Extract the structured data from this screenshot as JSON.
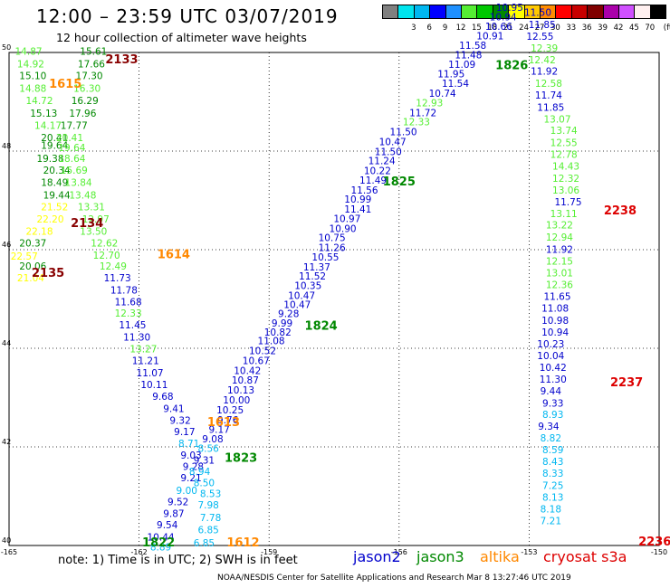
{
  "title": "12:00 – 23:59 UTC 03/07/2019",
  "subtitle": "12 hour collection of altimeter wave heights",
  "legend": {
    "unit_label": "(ft)",
    "bins": [
      {
        "color": "#808080",
        "label": ""
      },
      {
        "color": "#00e5ee",
        "label": "3"
      },
      {
        "color": "#00b7f0",
        "label": "6"
      },
      {
        "color": "#0000ff",
        "label": "9"
      },
      {
        "color": "#1e90ff",
        "label": "12"
      },
      {
        "color": "#55ee33",
        "label": "15"
      },
      {
        "color": "#00c800",
        "label": "18"
      },
      {
        "color": "#008800",
        "label": "21"
      },
      {
        "color": "#ffff00",
        "label": "24"
      },
      {
        "color": "#ffc800",
        "label": "27"
      },
      {
        "color": "#ff8c00",
        "label": "30"
      },
      {
        "color": "#ff0000",
        "label": "33"
      },
      {
        "color": "#c80000",
        "label": "36"
      },
      {
        "color": "#800000",
        "label": "39"
      },
      {
        "color": "#aa00aa",
        "label": "42"
      },
      {
        "color": "#d050ff",
        "label": "45"
      },
      {
        "color": "#fff0f0",
        "label": "70"
      },
      {
        "color": "#000000",
        "label": ""
      }
    ]
  },
  "axes": {
    "lon_ticks": [
      -165,
      -162,
      -159,
      -156,
      -153,
      -150
    ],
    "lat_ticks": [
      40,
      42,
      44,
      46,
      48,
      50
    ],
    "lon_range": [
      -165,
      -150
    ],
    "lat_range": [
      40,
      50
    ]
  },
  "colors": {
    "jason2": "#0000cc",
    "jason3": "#008800",
    "altika": "#ff8800",
    "cryosat": "#dd0000"
  },
  "footer": {
    "note": "note:  1) Time is in UTC;  2) SWH is in feet",
    "satellites": [
      {
        "name": "jason2",
        "color": "#0000cc"
      },
      {
        "name": "jason3",
        "color": "#008800"
      },
      {
        "name": "altika",
        "color": "#ff8800"
      },
      {
        "name": "cryosat s3a",
        "color": "#dd0000"
      }
    ],
    "credit": "NOAA/NESDIS Center for Satellite Applications and Research    Mar  8 13:27:46 UTC 2019"
  },
  "time_labels": [
    {
      "text": "2133",
      "color": "#880000",
      "lon": -162.4,
      "lat": 49.78
    },
    {
      "text": "1615",
      "color": "#ff8800",
      "lon": -163.7,
      "lat": 49.28
    },
    {
      "text": "2134",
      "color": "#880000",
      "lon": -163.2,
      "lat": 46.46
    },
    {
      "text": "1614",
      "color": "#ff8800",
      "lon": -161.2,
      "lat": 45.83
    },
    {
      "text": "2135",
      "color": "#880000",
      "lon": -164.1,
      "lat": 45.45
    },
    {
      "text": "1613",
      "color": "#ff8800",
      "lon": -160.05,
      "lat": 42.42
    },
    {
      "text": "1823",
      "color": "#008800",
      "lon": -159.65,
      "lat": 41.7
    },
    {
      "text": "1822",
      "color": "#008800",
      "lon": -161.55,
      "lat": 39.98
    },
    {
      "text": "1612",
      "color": "#ff8800",
      "lon": -159.6,
      "lat": 39.98
    },
    {
      "text": "1824",
      "color": "#008800",
      "lon": -157.8,
      "lat": 44.38
    },
    {
      "text": "1825",
      "color": "#008800",
      "lon": -156.0,
      "lat": 47.3
    },
    {
      "text": "1826",
      "color": "#008800",
      "lon": -153.4,
      "lat": 49.66
    },
    {
      "text": "2238",
      "color": "#dd0000",
      "lon": -150.9,
      "lat": 46.72
    },
    {
      "text": "2237",
      "color": "#dd0000",
      "lon": -150.75,
      "lat": 43.23
    },
    {
      "text": "2236",
      "color": "#dd0000",
      "lon": -150.1,
      "lat": 40.0
    }
  ],
  "tracks": [
    {
      "name": "cryosat-west-a",
      "points": [
        [
          "14.87",
          "#55ee33",
          -164.55,
          49.95
        ],
        [
          "14.92",
          "#55ee33",
          -164.5,
          49.7
        ],
        [
          "15.10",
          "#008800",
          -164.45,
          49.46
        ],
        [
          "14.88",
          "#55ee33",
          -164.45,
          49.2
        ],
        [
          "14.72",
          "#55ee33",
          -164.3,
          48.95
        ],
        [
          "15.13",
          "#008800",
          -164.2,
          48.7
        ],
        [
          "14.17",
          "#55ee33",
          -164.1,
          48.45
        ],
        [
          "20.41",
          "#008800",
          -163.95,
          48.2
        ],
        [
          "19.64",
          "#008800",
          -163.95,
          48.05
        ],
        [
          "19.38",
          "#008800",
          -164.05,
          47.78
        ],
        [
          "20.34",
          "#008800",
          -163.9,
          47.54
        ],
        [
          "18.49",
          "#008800",
          -163.95,
          47.29
        ],
        [
          "19.44",
          "#008800",
          -163.9,
          47.04
        ],
        [
          "21.52",
          "#ffff00",
          -163.95,
          46.8
        ],
        [
          "22.20",
          "#ffff00",
          -164.05,
          46.55
        ],
        [
          "22.18",
          "#ffff00",
          -164.3,
          46.3
        ],
        [
          "20.37",
          "#008800",
          -164.45,
          46.06
        ],
        [
          "22.57",
          "#ffff00",
          -164.65,
          45.8
        ],
        [
          "20.06",
          "#008800",
          -164.45,
          45.6
        ],
        [
          "21.04",
          "#ffff00",
          -164.5,
          45.36
        ]
      ]
    },
    {
      "name": "altika-west",
      "points": [
        [
          "15.61",
          "#008800",
          -163.05,
          49.95
        ],
        [
          "17.66",
          "#008800",
          -163.1,
          49.7
        ],
        [
          "17.30",
          "#008800",
          -163.15,
          49.46
        ],
        [
          "16.30",
          "#55ee33",
          -163.2,
          49.2
        ],
        [
          "16.29",
          "#008800",
          -163.25,
          48.95
        ],
        [
          "17.96",
          "#008800",
          -163.3,
          48.7
        ],
        [
          "17.77",
          "#008800",
          -163.5,
          48.45
        ],
        [
          "20.41",
          "#55ee33",
          -163.6,
          48.2
        ],
        [
          "19.64",
          "#55ee33",
          -163.55,
          48.0
        ],
        [
          "18.64",
          "#55ee33",
          -163.55,
          47.78
        ],
        [
          "15.69",
          "#55ee33",
          -163.5,
          47.54
        ],
        [
          "13.84",
          "#55ee33",
          -163.4,
          47.29
        ],
        [
          "13.48",
          "#55ee33",
          -163.3,
          47.04
        ],
        [
          "13.31",
          "#55ee33",
          -163.1,
          46.8
        ],
        [
          "12.97",
          "#55ee33",
          -163.0,
          46.55
        ],
        [
          "13.50",
          "#55ee33",
          -163.05,
          46.3
        ],
        [
          "12.62",
          "#55ee33",
          -162.8,
          46.06
        ],
        [
          "12.70",
          "#55ee33",
          -162.75,
          45.82
        ],
        [
          "12.49",
          "#55ee33",
          -162.6,
          45.6
        ],
        [
          "11.73",
          "#0000cc",
          -162.5,
          45.36
        ],
        [
          "11.78",
          "#0000cc",
          -162.35,
          45.11
        ],
        [
          "11.68",
          "#0000cc",
          -162.25,
          44.87
        ],
        [
          "12.33",
          "#55ee33",
          -162.25,
          44.64
        ],
        [
          "11.45",
          "#0000cc",
          -162.15,
          44.4
        ],
        [
          "11.30",
          "#0000cc",
          -162.05,
          44.16
        ],
        [
          "13.27",
          "#55ee33",
          -161.9,
          43.92
        ],
        [
          "11.21",
          "#0000cc",
          -161.85,
          43.68
        ],
        [
          "11.07",
          "#0000cc",
          -161.75,
          43.43
        ],
        [
          "10.11",
          "#0000cc",
          -161.65,
          43.19
        ],
        [
          "9.68",
          "#0000cc",
          -161.45,
          42.95
        ],
        [
          "9.41",
          "#0000cc",
          -161.2,
          42.71
        ],
        [
          "9.32",
          "#0000cc",
          -161.05,
          42.47
        ],
        [
          "9.17",
          "#0000cc",
          -160.95,
          42.24
        ],
        [
          "8.71",
          "#00b7f0",
          -160.85,
          42.0
        ],
        [
          "9.03",
          "#0000cc",
          -160.8,
          41.76
        ],
        [
          "9.28",
          "#0000cc",
          -160.75,
          41.53
        ],
        [
          "9.21",
          "#0000cc",
          -160.8,
          41.3
        ],
        [
          "9.00",
          "#00b7f0",
          -160.9,
          41.05
        ],
        [
          "9.52",
          "#0000cc",
          -161.1,
          40.82
        ],
        [
          "9.87",
          "#0000cc",
          -161.2,
          40.58
        ],
        [
          "9.54",
          "#0000cc",
          -161.35,
          40.35
        ],
        [
          "10.44",
          "#0000cc",
          -161.5,
          40.1
        ],
        [
          "8.89",
          "#00b7f0",
          -161.5,
          39.9
        ]
      ]
    },
    {
      "name": "jason3-ascending",
      "points": [
        [
          "8.56",
          "#00b7f0",
          -160.4,
          41.9
        ],
        [
          "9.31",
          "#0000cc",
          -160.5,
          41.66
        ],
        [
          "8.94",
          "#00b7f0",
          -160.6,
          41.43
        ],
        [
          "8.50",
          "#00b7f0",
          -160.5,
          41.2
        ],
        [
          "8.53",
          "#00b7f0",
          -160.35,
          40.98
        ],
        [
          "7.98",
          "#00b7f0",
          -160.4,
          40.75
        ],
        [
          "7.78",
          "#00b7f0",
          -160.35,
          40.5
        ],
        [
          "6.85",
          "#00b7f0",
          -160.4,
          40.25
        ],
        [
          "6.85",
          "#00b7f0",
          -160.5,
          39.98
        ]
      ]
    },
    {
      "name": "jason2-ascending",
      "points": [
        [
          "9.08",
          "#0000cc",
          -160.3,
          42.09
        ],
        [
          "9.17",
          "#0000cc",
          -160.15,
          42.28
        ],
        [
          "9.76",
          "#0000cc",
          -159.95,
          42.48
        ],
        [
          "10.25",
          "#0000cc",
          -159.9,
          42.68
        ],
        [
          "10.00",
          "#0000cc",
          -159.75,
          42.88
        ],
        [
          "10.13",
          "#0000cc",
          -159.65,
          43.08
        ],
        [
          "10.87",
          "#0000cc",
          -159.55,
          43.28
        ],
        [
          "10.42",
          "#0000cc",
          -159.5,
          43.48
        ],
        [
          "10.67",
          "#0000cc",
          -159.3,
          43.68
        ],
        [
          "10.52",
          "#0000cc",
          -159.15,
          43.88
        ],
        [
          "11.08",
          "#0000cc",
          -158.95,
          44.08
        ],
        [
          "10.82",
          "#0000cc",
          -158.8,
          44.26
        ],
        [
          "9.99",
          "#0000cc",
          -158.7,
          44.44
        ],
        [
          "9.28",
          "#0000cc",
          -158.55,
          44.63
        ],
        [
          "10.47",
          "#0000cc",
          -158.35,
          44.82
        ],
        [
          "10.47",
          "#0000cc",
          -158.25,
          45.0
        ],
        [
          "10.35",
          "#0000cc",
          -158.1,
          45.2
        ],
        [
          "11.52",
          "#0000cc",
          -158.0,
          45.39
        ],
        [
          "11.37",
          "#0000cc",
          -157.9,
          45.58
        ],
        [
          "10.55",
          "#0000cc",
          -157.7,
          45.78
        ],
        [
          "11.26",
          "#0000cc",
          -157.55,
          45.97
        ],
        [
          "10.75",
          "#0000cc",
          -157.55,
          46.17
        ],
        [
          "10.90",
          "#0000cc",
          -157.3,
          46.36
        ],
        [
          "10.97",
          "#0000cc",
          -157.2,
          46.56
        ],
        [
          "11.41",
          "#0000cc",
          -156.95,
          46.75
        ],
        [
          "10.99",
          "#0000cc",
          -156.95,
          46.95
        ],
        [
          "11.56",
          "#0000cc",
          -156.8,
          47.14
        ],
        [
          "11.49",
          "#0000cc",
          -156.6,
          47.34
        ],
        [
          "10.22",
          "#0000cc",
          -156.5,
          47.53
        ],
        [
          "11.24",
          "#0000cc",
          -156.4,
          47.73
        ],
        [
          "11.50",
          "#0000cc",
          -156.25,
          47.92
        ],
        [
          "10.47",
          "#0000cc",
          -156.15,
          48.12
        ],
        [
          "11.50",
          "#0000cc",
          -155.9,
          48.32
        ],
        [
          "12.33",
          "#55ee33",
          -155.6,
          48.52
        ],
        [
          "11.72",
          "#0000cc",
          -155.45,
          48.71
        ],
        [
          "12.93",
          "#55ee33",
          -155.3,
          48.91
        ],
        [
          "10.74",
          "#0000cc",
          -155.0,
          49.1
        ],
        [
          "11.54",
          "#0000cc",
          -154.7,
          49.3
        ],
        [
          "11.95",
          "#0000cc",
          -154.8,
          49.5
        ],
        [
          "11.09",
          "#0000cc",
          -154.55,
          49.69
        ],
        [
          "11.48",
          "#0000cc",
          -154.4,
          49.88
        ],
        [
          "11.58",
          "#0000cc",
          -154.3,
          50.07
        ],
        [
          "10.91",
          "#0000cc",
          -153.9,
          50.27
        ],
        [
          "10.66",
          "#0000cc",
          -153.7,
          50.46
        ],
        [
          "10.94",
          "#0000cc",
          -153.6,
          50.65
        ],
        [
          "10.95",
          "#0000cc",
          -153.45,
          50.84
        ]
      ]
    },
    {
      "name": "cryosat-east",
      "points": [
        [
          "11.50",
          "#0000cc",
          -152.8,
          50.74
        ],
        [
          "11.85",
          "#0000cc",
          -152.7,
          50.5
        ],
        [
          "12.55",
          "#0000cc",
          -152.75,
          50.26
        ],
        [
          "12.39",
          "#55ee33",
          -152.65,
          50.02
        ],
        [
          "12.42",
          "#55ee33",
          -152.7,
          49.78
        ],
        [
          "11.92",
          "#0000cc",
          -152.65,
          49.55
        ],
        [
          "12.58",
          "#55ee33",
          -152.55,
          49.3
        ],
        [
          "11.74",
          "#0000cc",
          -152.55,
          49.06
        ],
        [
          "11.85",
          "#0000cc",
          -152.5,
          48.82
        ],
        [
          "13.07",
          "#55ee33",
          -152.35,
          48.58
        ],
        [
          "13.74",
          "#55ee33",
          -152.2,
          48.35
        ],
        [
          "12.55",
          "#55ee33",
          -152.2,
          48.1
        ],
        [
          "12.78",
          "#55ee33",
          -152.2,
          47.86
        ],
        [
          "14.43",
          "#55ee33",
          -152.15,
          47.62
        ],
        [
          "12.32",
          "#55ee33",
          -152.15,
          47.38
        ],
        [
          "13.06",
          "#55ee33",
          -152.15,
          47.14
        ],
        [
          "11.75",
          "#0000cc",
          -152.1,
          46.9
        ],
        [
          "13.11",
          "#55ee33",
          -152.2,
          46.66
        ],
        [
          "13.22",
          "#55ee33",
          -152.3,
          46.43
        ],
        [
          "12.94",
          "#55ee33",
          -152.3,
          46.18
        ],
        [
          "11.92",
          "#0000cc",
          -152.3,
          45.94
        ],
        [
          "12.15",
          "#55ee33",
          -152.3,
          45.7
        ],
        [
          "13.01",
          "#55ee33",
          -152.3,
          45.46
        ],
        [
          "12.36",
          "#55ee33",
          -152.3,
          45.22
        ],
        [
          "11.65",
          "#0000cc",
          -152.35,
          44.98
        ],
        [
          "11.08",
          "#0000cc",
          -152.4,
          44.74
        ],
        [
          "10.98",
          "#0000cc",
          -152.4,
          44.5
        ],
        [
          "10.94",
          "#0000cc",
          -152.4,
          44.26
        ],
        [
          "10.23",
          "#0000cc",
          -152.5,
          44.02
        ],
        [
          "10.04",
          "#0000cc",
          -152.5,
          43.78
        ],
        [
          "10.42",
          "#0000cc",
          -152.45,
          43.54
        ],
        [
          "11.30",
          "#0000cc",
          -152.45,
          43.3
        ],
        [
          "9.44",
          "#0000cc",
          -152.5,
          43.06
        ],
        [
          "9.33",
          "#0000cc",
          -152.45,
          42.82
        ],
        [
          "8.93",
          "#00b7f0",
          -152.45,
          42.59
        ],
        [
          "9.34",
          "#0000cc",
          -152.55,
          42.35
        ],
        [
          "8.82",
          "#00b7f0",
          -152.5,
          42.11
        ],
        [
          "8.59",
          "#00b7f0",
          -152.45,
          41.87
        ],
        [
          "8.43",
          "#00b7f0",
          -152.45,
          41.63
        ],
        [
          "8.33",
          "#00b7f0",
          -152.45,
          41.39
        ],
        [
          "7.25",
          "#00b7f0",
          -152.45,
          41.15
        ],
        [
          "8.13",
          "#00b7f0",
          -152.45,
          40.91
        ],
        [
          "8.18",
          "#00b7f0",
          -152.5,
          40.67
        ],
        [
          "7.21",
          "#00b7f0",
          -152.5,
          40.43
        ]
      ]
    }
  ]
}
